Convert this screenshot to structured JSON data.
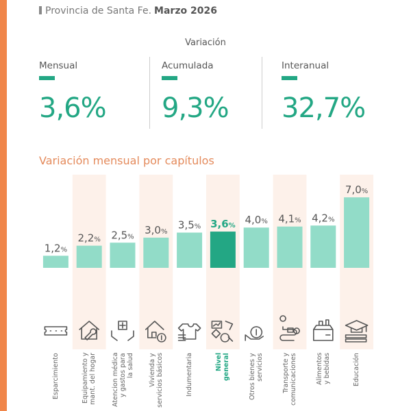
{
  "header": {
    "region": "Provincia de Santa Fe.",
    "period": "Marzo 2026"
  },
  "variation": {
    "title": "Variación",
    "items": [
      {
        "label": "Mensual",
        "value": "3,6%"
      },
      {
        "label": "Acumulada",
        "value": "9,3%"
      },
      {
        "label": "Interanual",
        "value": "32,7%"
      }
    ]
  },
  "colors": {
    "accent": "#23a784",
    "bar": "#92dcc8",
    "highlight_bar": "#23a784",
    "title": "#e48a5b",
    "edge": "#f0864a",
    "stripe": "#fdf1ea"
  },
  "chart_data": {
    "type": "bar",
    "title": "Variación mensual por capítulos",
    "categories": [
      "Esparcimiento",
      "Equipamiento y mant. del hogar",
      "Atencion médica y gastos para la salud",
      "Vivienda y servicios básicos",
      "Indumentaria",
      "Nivel general",
      "Otros bienes y servicios",
      "Transporte y comunicaciones",
      "Alimentos y bebidas",
      "Educación"
    ],
    "label_lines": [
      [
        "Esparcimiento"
      ],
      [
        "Equipamiento y",
        "mant. del hogar"
      ],
      [
        "Atencion médica",
        "y gastos para",
        "la salud"
      ],
      [
        "Vivienda y",
        "servicios básicos"
      ],
      [
        "Indumentaria"
      ],
      [
        "Nivel",
        "general"
      ],
      [
        "Otros bienes y",
        "servicios"
      ],
      [
        "Transporte y",
        "comunicaciones"
      ],
      [
        "Alimentos",
        "y bebidas"
      ],
      [
        "Educación"
      ]
    ],
    "values": [
      1.2,
      2.2,
      2.5,
      3.0,
      3.5,
      3.6,
      4.0,
      4.1,
      4.2,
      7.0
    ],
    "value_labels": [
      "1,2",
      "2,2",
      "2,5",
      "3,0",
      "3,5",
      "3,6",
      "4,0",
      "4,1",
      "4,2",
      "7,0"
    ],
    "unit": "%",
    "highlight_index": 5,
    "icons": [
      "ticket-icon",
      "house-wrench-icon",
      "health-hands-icon",
      "house-money-icon",
      "clothes-icon",
      "economy-analysis-icon",
      "money-hand-icon",
      "route-icon",
      "grocery-box-icon",
      "education-icon"
    ],
    "ylim": [
      0,
      7.5
    ],
    "grid": false,
    "legend": "none"
  }
}
